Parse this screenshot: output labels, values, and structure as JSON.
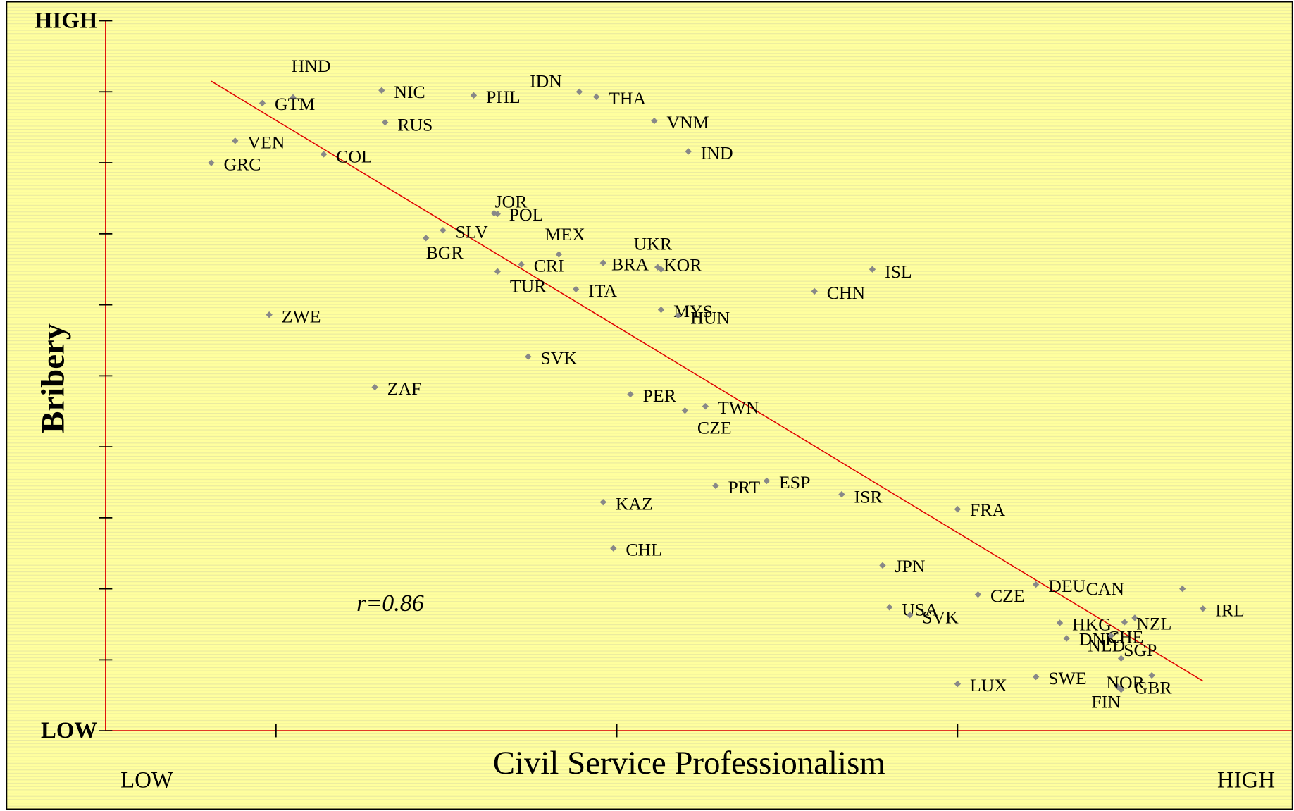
{
  "chart_data": {
    "type": "scatter",
    "y_label": "Bribery",
    "x_label": "Civil Service Professionalism",
    "annotation": "r=0.86",
    "x_low_label": "LOW",
    "x_high_label": "HIGH",
    "xlim": [
      0.5,
      3.98
    ],
    "ylim": [
      0,
      10
    ],
    "yticks": [
      {
        "value": 0,
        "label": "LOW"
      },
      {
        "value": 10,
        "label": "HIGH"
      }
    ],
    "minor_yticks": [
      1,
      2,
      3,
      4,
      5,
      6,
      7,
      8,
      9
    ],
    "minor_xticks": [
      1,
      2,
      3
    ],
    "trendline": {
      "color": "#e00000",
      "x": [
        0.81,
        3.72
      ],
      "y": [
        9.15,
        0.7
      ]
    },
    "series": [
      {
        "color": "#888888",
        "labels": [
          "HND",
          "GTM",
          "NIC",
          "PHL",
          "IDN",
          "THA",
          "RUS",
          "VNM",
          "VEN",
          "COL",
          "IND",
          "GRC",
          "JOR",
          "POL",
          "SLV",
          "BGR",
          "MEX",
          "UKR",
          "BRA",
          "KOR",
          "CRI",
          "TUR",
          "ITA",
          "CHN",
          "ISL",
          "ZWE",
          "MYS",
          "HUN",
          "SVK",
          "ZAF",
          "PER",
          "TWN",
          "CZE",
          "PRT",
          "ESP",
          "ISR",
          "KAZ",
          "FRA",
          "CHL",
          "JPN",
          "DEU",
          "CAN",
          "CZE",
          "IRL",
          "USA",
          "SVK",
          "NZL",
          "HKG",
          "CHE",
          "DNK",
          "NLD",
          "SGP",
          "GBR",
          "NOR",
          "FIN",
          "SWE",
          "LUX"
        ],
        "x": [
          1.05,
          0.96,
          1.31,
          1.58,
          1.89,
          1.94,
          1.32,
          2.11,
          0.88,
          1.14,
          2.21,
          0.81,
          1.64,
          1.65,
          1.49,
          1.44,
          1.83,
          2.12,
          1.96,
          2.13,
          1.72,
          1.65,
          1.88,
          2.58,
          2.75,
          0.98,
          2.13,
          2.18,
          1.74,
          1.29,
          2.04,
          2.26,
          2.2,
          2.29,
          2.44,
          2.66,
          1.96,
          3.0,
          1.99,
          2.78,
          3.23,
          3.66,
          3.06,
          3.72,
          2.8,
          2.86,
          3.52,
          3.3,
          3.49,
          3.32,
          3.45,
          3.48,
          3.57,
          3.47,
          3.48,
          3.23,
          3.0
        ],
        "values": [
          8.92,
          8.84,
          9.02,
          8.95,
          9.0,
          8.93,
          8.57,
          8.59,
          8.31,
          8.12,
          8.16,
          8.0,
          7.29,
          7.28,
          7.05,
          6.94,
          6.71,
          6.53,
          6.59,
          6.5,
          6.57,
          6.47,
          6.22,
          6.19,
          6.5,
          5.86,
          5.93,
          5.85,
          5.27,
          4.84,
          4.74,
          4.57,
          4.51,
          3.45,
          3.52,
          3.33,
          3.22,
          3.12,
          2.57,
          2.33,
          2.06,
          2.0,
          1.92,
          1.72,
          1.74,
          1.63,
          1.59,
          1.52,
          1.53,
          1.3,
          1.34,
          1.02,
          0.78,
          0.62,
          0.58,
          0.76,
          0.66
        ]
      }
    ]
  }
}
